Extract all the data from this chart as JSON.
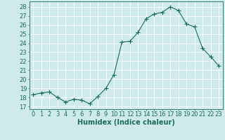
{
  "x": [
    0,
    1,
    2,
    3,
    4,
    5,
    6,
    7,
    8,
    9,
    10,
    11,
    12,
    13,
    14,
    15,
    16,
    17,
    18,
    19,
    20,
    21,
    22,
    23
  ],
  "y": [
    18.3,
    18.5,
    18.6,
    18.0,
    17.5,
    17.8,
    17.7,
    17.3,
    18.1,
    19.0,
    20.5,
    24.1,
    24.2,
    25.2,
    26.7,
    27.2,
    27.4,
    28.0,
    27.6,
    26.1,
    25.8,
    23.4,
    22.5,
    21.5
  ],
  "line_color": "#1a6b5a",
  "marker": "+",
  "marker_size": 4,
  "marker_linewidth": 0.8,
  "line_width": 0.8,
  "bg_color": "#ceeaea",
  "grid_color": "#ffffff",
  "xlabel": "Humidex (Indice chaleur)",
  "ylabel_ticks": [
    17,
    18,
    19,
    20,
    21,
    22,
    23,
    24,
    25,
    26,
    27,
    28
  ],
  "ylim": [
    16.7,
    28.6
  ],
  "xlim": [
    -0.5,
    23.5
  ],
  "tick_color": "#1a6b5a",
  "label_color": "#1a6b5a",
  "xlabel_fontsize": 7,
  "tick_fontsize": 6,
  "figsize": [
    3.2,
    2.0
  ],
  "dpi": 100
}
